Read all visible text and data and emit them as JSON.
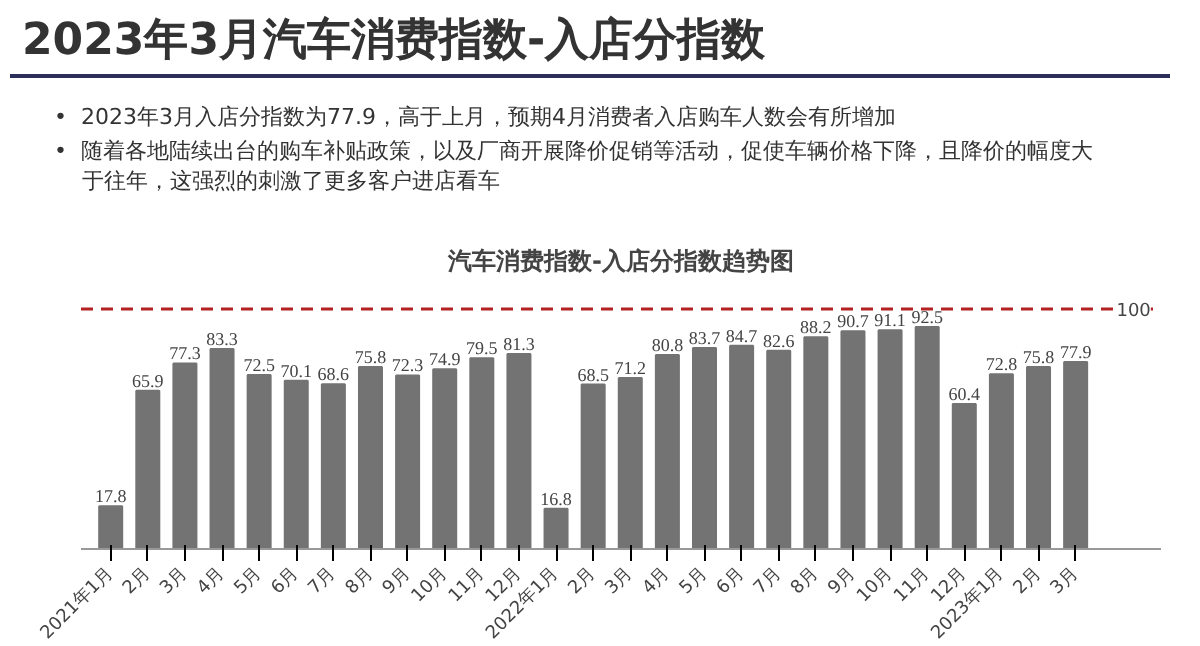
{
  "chart_data": {
    "type": "bar",
    "title": "2023年3月汽车消费指数-入店分指数",
    "subtitle": "汽车消费指数-入店分指数趋势图",
    "annotations": [
      "•  2023年3月入店分指数为77.9，高于上月，预期4月消费者入店购车人数会有所增加",
      "•  随着各地陆续出台的购车补贴政策，以及厂商开展降价促销等活动，促使车辆价格下降，且降价的幅度大于往年，这强烈的刺激了更多客户进店看车"
    ],
    "categories": [
      "2021年1月",
      "2月",
      "3月",
      "4月",
      "5月",
      "6月",
      "7月",
      "8月",
      "9月",
      "10月",
      "11月",
      "12月",
      "2022年1月",
      "2月",
      "3月",
      "4月",
      "5月",
      "6月",
      "7月",
      "8月",
      "9月",
      "10月",
      "11月",
      "12月",
      "2023年1月",
      "2月",
      "3月"
    ],
    "values": [
      17.8,
      65.9,
      77.3,
      83.3,
      72.5,
      70.1,
      68.6,
      75.8,
      72.3,
      74.9,
      79.5,
      81.3,
      16.8,
      68.5,
      71.2,
      80.8,
      83.7,
      84.7,
      82.6,
      88.2,
      90.7,
      91.1,
      92.5,
      60.4,
      72.8,
      75.8,
      77.9
    ],
    "color": "#737373",
    "data_labels": true,
    "tick_labels": "x",
    "grid": false,
    "ref_lines": [
      {
        "axis": "y",
        "value": 100,
        "label": "100",
        "color": "#b22222",
        "line_style": "dashed"
      }
    ]
  }
}
